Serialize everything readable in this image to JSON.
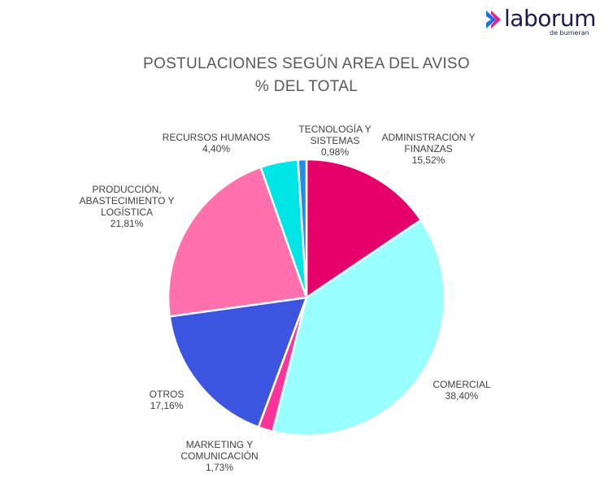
{
  "logo": {
    "word": "laborum",
    "sub": "de bumeran",
    "mark_colors": [
      "#1e6bf0",
      "#ec1c7a"
    ]
  },
  "chart_data": {
    "type": "pie",
    "title": "POSTULACIONES SEGÚN AREA DEL AVISO",
    "subtitle": "% DEL TOTAL",
    "legend": "none",
    "slices": [
      {
        "label": "ADMINISTRACIÓN Y FINANZAS",
        "label_lines": [
          "ADMINISTRACIÓN Y",
          "FINANZAS"
        ],
        "value": 15.52,
        "value_text": "15,52%",
        "color": "#e6006a"
      },
      {
        "label": "COMERCIAL",
        "label_lines": [
          "COMERCIAL"
        ],
        "value": 38.4,
        "value_text": "38,40%",
        "color": "#99ffff"
      },
      {
        "label": "MARKETING Y COMUNICACIÓN",
        "label_lines": [
          "MARKETING Y",
          "COMUNICACIÓN"
        ],
        "value": 1.73,
        "value_text": "1,73%",
        "color": "#ff3399"
      },
      {
        "label": "OTROS",
        "label_lines": [
          "OTROS"
        ],
        "value": 17.16,
        "value_text": "17,16%",
        "color": "#3b55e0"
      },
      {
        "label": "PRODUCCIÓN, ABASTECIMIENTO Y LOGÍSTICA",
        "label_lines": [
          "PRODUCCIÓN,",
          "ABASTECIMIENTO Y",
          "LOGÍSTICA"
        ],
        "value": 21.81,
        "value_text": "21,81%",
        "color": "#ff70ad"
      },
      {
        "label": "RECURSOS HUMANOS",
        "label_lines": [
          "RECURSOS HUMANOS"
        ],
        "value": 4.4,
        "value_text": "4,40%",
        "color": "#00e6e6"
      },
      {
        "label": "TECNOLOGÍA Y SISTEMAS",
        "label_lines": [
          "TECNOLOGÍA Y",
          "SISTEMAS"
        ],
        "value": 0.98,
        "value_text": "0,98%",
        "color": "#1e8fe8"
      }
    ]
  }
}
